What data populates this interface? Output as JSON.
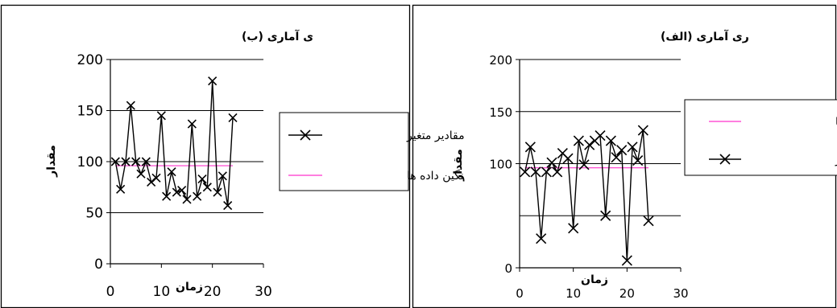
{
  "chart_data": [
    {
      "type": "line",
      "title": "ی آماری (ب)",
      "xlabel": "زمان",
      "ylabel": "مقدار",
      "xlim": [
        0,
        30
      ],
      "ylim": [
        0,
        200
      ],
      "x_ticks": [
        "0",
        "10",
        "20",
        "30"
      ],
      "y_ticks": [
        "0",
        "50",
        "100",
        "150",
        "200"
      ],
      "grid": "horizontal",
      "legend_position": "right",
      "series": [
        {
          "name": "مقادیر متغیر",
          "color": "#000000",
          "marker": "x",
          "x": [
            1,
            2,
            3,
            4,
            5,
            6,
            7,
            8,
            9,
            10,
            11,
            12,
            13,
            14,
            15,
            16,
            17,
            18,
            19,
            20,
            21,
            22,
            23,
            24
          ],
          "values": [
            100,
            73,
            100,
            155,
            100,
            88,
            100,
            80,
            84,
            145,
            66,
            90,
            70,
            72,
            63,
            137,
            66,
            83,
            75,
            179,
            70,
            86,
            57,
            143
          ]
        },
        {
          "name": "نگین داده ها",
          "color": "#ff33cc",
          "x": [
            1,
            24
          ],
          "values": [
            96,
            96
          ]
        }
      ]
    },
    {
      "type": "line",
      "title": "ری آماری (الف)",
      "xlabel": "زمان",
      "ylabel": "مقدار",
      "xlim": [
        0,
        30
      ],
      "ylim": [
        0,
        200
      ],
      "x_ticks": [
        "0",
        "10",
        "20",
        "30"
      ],
      "y_ticks": [
        "0",
        "100",
        "150",
        "200"
      ],
      "grid": "horizontal",
      "legend_position": "right",
      "series": [
        {
          "name": "مقادیر متغیر",
          "color": "#000000",
          "marker": "x",
          "x": [
            1,
            2,
            3,
            4,
            5,
            6,
            7,
            8,
            9,
            10,
            11,
            12,
            13,
            14,
            15,
            16,
            17,
            18,
            19,
            20,
            21,
            22,
            23,
            24
          ],
          "values": [
            92,
            116,
            92,
            28,
            92,
            101,
            92,
            110,
            105,
            38,
            122,
            99,
            118,
            122,
            127,
            50,
            122,
            106,
            113,
            7,
            116,
            103,
            132,
            45
          ]
        },
        {
          "name": "یانگین داده ها",
          "color": "#ff33cc",
          "x": [
            1,
            24
          ],
          "values": [
            96,
            96
          ]
        }
      ]
    }
  ]
}
